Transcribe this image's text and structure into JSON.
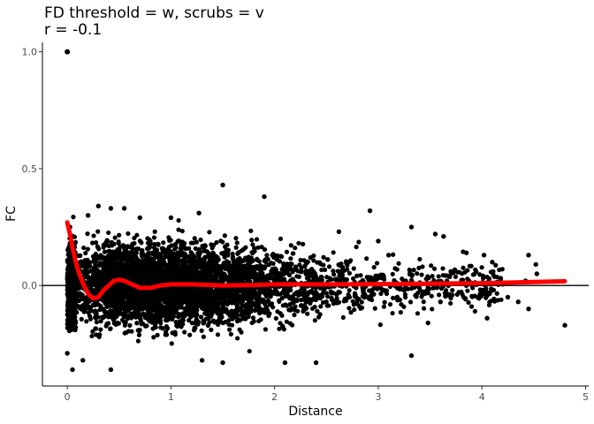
{
  "chart_data": {
    "type": "scatter",
    "title": "FD threshold = w, scrubs = v",
    "subtitle": "r = -0.1",
    "xlabel": "Distance",
    "ylabel": "FC",
    "xlim": [
      -0.24,
      5.03
    ],
    "ylim": [
      -0.43,
      1.04
    ],
    "x_ticks": [
      0,
      1,
      2,
      3,
      4,
      5
    ],
    "y_ticks": [
      0.0,
      0.5,
      1.0
    ],
    "x_tick_labels": [
      "0",
      "1",
      "2",
      "3",
      "4",
      "5"
    ],
    "y_tick_labels": [
      "0.0",
      "0.5",
      "1.0"
    ],
    "grid": false,
    "reference_line_y": 0,
    "point_color": "#000000",
    "trend_color": "#ff0000",
    "ref_line_color": "#000000",
    "diagonal_point": {
      "x": 0,
      "y": 1.0
    },
    "trend": {
      "x": [
        0,
        0.03,
        0.06,
        0.1,
        0.15,
        0.2,
        0.25,
        0.3,
        0.35,
        0.4,
        0.45,
        0.5,
        0.55,
        0.6,
        0.65,
        0.7,
        0.8,
        0.9,
        1.0,
        1.2,
        1.5,
        1.8,
        2.0,
        2.5,
        3.0,
        3.5,
        4.0,
        4.5,
        4.8
      ],
      "y": [
        0.27,
        0.21,
        0.14,
        0.07,
        0.01,
        -0.035,
        -0.055,
        -0.05,
        -0.02,
        0.0,
        0.02,
        0.025,
        0.02,
        0.01,
        0.0,
        -0.01,
        -0.01,
        0.0,
        0.005,
        0.005,
        0.0,
        0.002,
        0.005,
        0.005,
        0.006,
        0.008,
        0.01,
        0.015,
        0.018
      ]
    },
    "outlier_points": [
      {
        "x": 1.5,
        "y": 0.43
      },
      {
        "x": 1.9,
        "y": 0.38
      },
      {
        "x": 0.3,
        "y": 0.34
      },
      {
        "x": 0.42,
        "y": 0.33
      },
      {
        "x": 2.92,
        "y": 0.32
      },
      {
        "x": 3.32,
        "y": 0.25
      },
      {
        "x": 3.55,
        "y": 0.22
      },
      {
        "x": 3.63,
        "y": 0.21
      },
      {
        "x": 3.85,
        "y": 0.14
      },
      {
        "x": 4.02,
        "y": 0.13
      },
      {
        "x": 4.1,
        "y": 0.1
      },
      {
        "x": 4.45,
        "y": 0.13
      },
      {
        "x": 4.52,
        "y": 0.09
      },
      {
        "x": 4.53,
        "y": 0.05
      },
      {
        "x": 4.42,
        "y": 0.02
      },
      {
        "x": 4.05,
        "y": -0.14
      },
      {
        "x": 3.9,
        "y": -0.09
      },
      {
        "x": 4.25,
        "y": -0.05
      },
      {
        "x": 4.35,
        "y": -0.07
      },
      {
        "x": 4.45,
        "y": -0.1
      },
      {
        "x": 4.8,
        "y": -0.17
      },
      {
        "x": 3.48,
        "y": -0.16
      },
      {
        "x": 3.32,
        "y": -0.3
      },
      {
        "x": 0.05,
        "y": -0.36
      },
      {
        "x": 0.42,
        "y": -0.36
      },
      {
        "x": 1.3,
        "y": -0.32
      },
      {
        "x": 1.5,
        "y": -0.33
      },
      {
        "x": 2.1,
        "y": -0.33
      },
      {
        "x": 2.4,
        "y": -0.33
      },
      {
        "x": 0.15,
        "y": -0.32
      },
      {
        "x": 0.0,
        "y": -0.29
      },
      {
        "x": 0.2,
        "y": 0.3
      },
      {
        "x": 0.55,
        "y": 0.33
      },
      {
        "x": 1.27,
        "y": 0.31
      },
      {
        "x": 1.0,
        "y": 0.29
      },
      {
        "x": 0.7,
        "y": 0.29
      },
      {
        "x": 2.62,
        "y": 0.23
      },
      {
        "x": 3.0,
        "y": 0.19
      },
      {
        "x": 3.1,
        "y": 0.13
      },
      {
        "x": 3.7,
        "y": 0.06
      },
      {
        "x": 3.6,
        "y": -0.07
      }
    ]
  }
}
